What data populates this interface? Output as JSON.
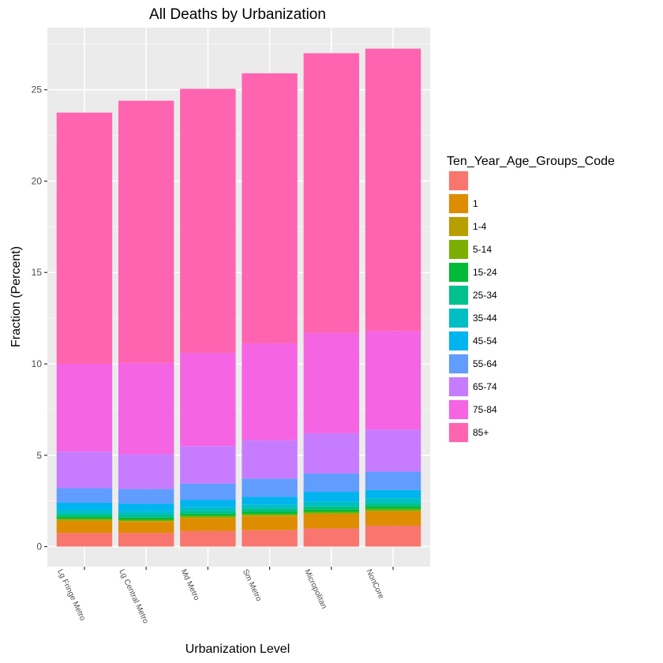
{
  "chart_data": {
    "type": "bar",
    "stacked": true,
    "title": "All Deaths by Urbanization",
    "xlabel": "Urbanization Level",
    "ylabel": "Fraction (Percent)",
    "ylim": [
      -1.1,
      28.4
    ],
    "yticks": [
      0,
      5,
      10,
      15,
      20,
      25
    ],
    "grid": true,
    "legend_position": "right",
    "legend_title": "Ten_Year_Age_Groups_Code",
    "categories": [
      "Lg Fringe Metro",
      "Lg Central Metro",
      "Md Metro",
      "Sm Metro",
      "Micropolitan",
      "NonCore"
    ],
    "series": [
      {
        "name": "",
        "color": "#F8766D",
        "values": [
          0.75,
          0.75,
          0.85,
          0.9,
          1.0,
          1.15
        ]
      },
      {
        "name": "1",
        "color": "#DE8C00",
        "values": [
          0.65,
          0.6,
          0.7,
          0.75,
          0.75,
          0.75
        ]
      },
      {
        "name": "1-4",
        "color": "#B79F00",
        "values": [
          0.05,
          0.05,
          0.05,
          0.05,
          0.06,
          0.06
        ]
      },
      {
        "name": "5-14",
        "color": "#7CAE00",
        "values": [
          0.08,
          0.07,
          0.08,
          0.08,
          0.09,
          0.1
        ]
      },
      {
        "name": "15-24",
        "color": "#00BA38",
        "values": [
          0.12,
          0.12,
          0.12,
          0.14,
          0.14,
          0.14
        ]
      },
      {
        "name": "25-34",
        "color": "#00C08B",
        "values": [
          0.14,
          0.14,
          0.15,
          0.17,
          0.17,
          0.18
        ]
      },
      {
        "name": "35-44",
        "color": "#00BFC4",
        "values": [
          0.2,
          0.2,
          0.2,
          0.21,
          0.24,
          0.27
        ]
      },
      {
        "name": "45-54",
        "color": "#00B4F0",
        "values": [
          0.41,
          0.42,
          0.4,
          0.42,
          0.55,
          0.45
        ]
      },
      {
        "name": "55-64",
        "color": "#619CFF",
        "values": [
          0.8,
          0.8,
          0.9,
          1.0,
          1.0,
          1.0
        ]
      },
      {
        "name": "65-74",
        "color": "#C77CFF",
        "values": [
          2.0,
          1.9,
          2.05,
          2.1,
          2.2,
          2.3
        ]
      },
      {
        "name": "75-84",
        "color": "#F564E3",
        "values": [
          4.8,
          5.0,
          5.1,
          5.3,
          5.5,
          5.4
        ]
      },
      {
        "name": "85+",
        "color": "#FF64B0",
        "values": [
          13.75,
          14.35,
          14.45,
          14.78,
          15.3,
          15.45
        ]
      }
    ]
  },
  "colors": {
    "panel_background": "#EBEBEB",
    "grid_major": "#FFFFFF",
    "grid_minor": "#F5F5F5"
  }
}
